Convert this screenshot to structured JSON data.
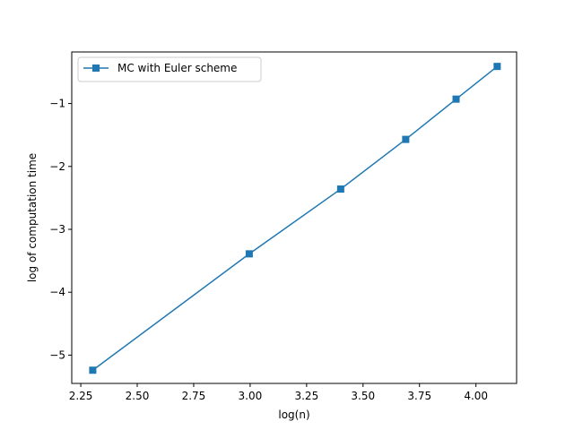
{
  "chart_data": {
    "type": "line",
    "title": "",
    "xlabel": "log(n)",
    "ylabel": "log of computation time",
    "xlim": [
      2.21,
      4.18
    ],
    "ylim": [
      -5.45,
      -0.18
    ],
    "xticks": [
      2.25,
      2.5,
      2.75,
      3.0,
      3.25,
      3.5,
      3.75,
      4.0
    ],
    "xtick_labels": [
      "2.25",
      "2.50",
      "2.75",
      "3.00",
      "3.25",
      "3.50",
      "3.75",
      "4.00"
    ],
    "yticks": [
      -5,
      -4,
      -3,
      -2,
      -1
    ],
    "ytick_labels": [
      "−5",
      "−4",
      "−3",
      "−2",
      "−1"
    ],
    "grid": false,
    "legend": "upper-left",
    "series": [
      {
        "name": "MC with Euler scheme",
        "color": "#1f77b4",
        "marker": "square",
        "x": [
          2.303,
          2.996,
          3.401,
          3.689,
          3.912,
          4.094
        ],
        "y": [
          -5.24,
          -3.39,
          -2.36,
          -1.57,
          -0.93,
          -0.41
        ]
      }
    ]
  }
}
